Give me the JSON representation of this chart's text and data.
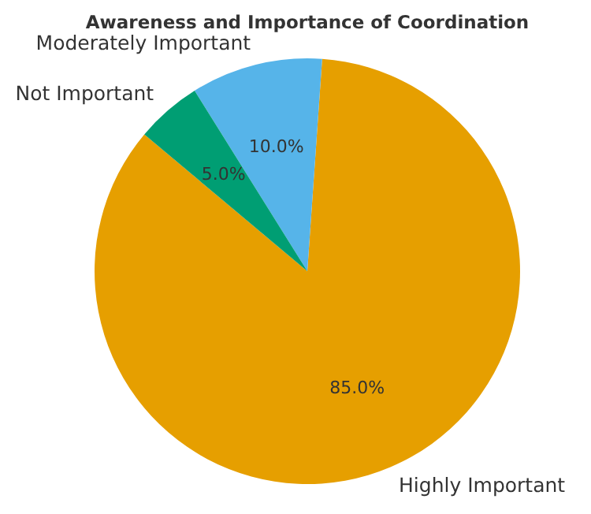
{
  "chart_data": {
    "type": "pie",
    "title": "Awareness and Importance of Coordination",
    "categories": [
      "Highly Important",
      "Moderately Important",
      "Not Important"
    ],
    "values": [
      85,
      10,
      5
    ],
    "colors": [
      "#e69f00",
      "#56b4e9",
      "#009e73"
    ],
    "value_labels": [
      "85.0%",
      "10.0%",
      "5.0%"
    ]
  }
}
